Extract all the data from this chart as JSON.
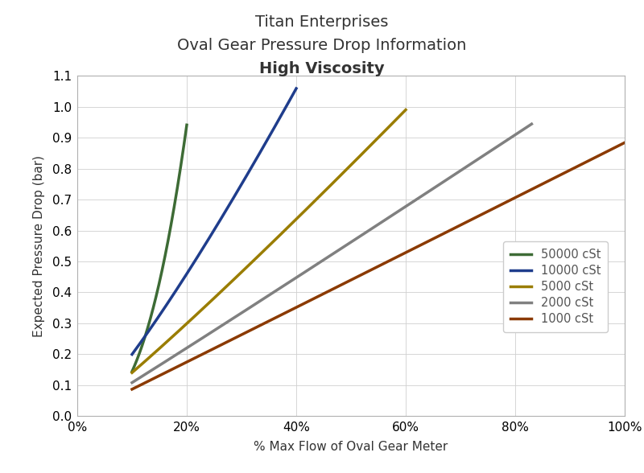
{
  "title_line1": "Titan Enterprises",
  "title_line2": "Oval Gear Pressure Drop Information",
  "title_line3": "High Viscosity",
  "xlabel": "% Max Flow of Oval Gear Meter",
  "ylabel": "Expected Pressure Drop (bar)",
  "xlim": [
    0,
    1.0
  ],
  "ylim": [
    0.0,
    1.1
  ],
  "xticks": [
    0,
    0.2,
    0.4,
    0.6,
    0.8,
    1.0
  ],
  "yticks": [
    0.0,
    0.1,
    0.2,
    0.3,
    0.4,
    0.5,
    0.6,
    0.7,
    0.8,
    0.9,
    1.0,
    1.1
  ],
  "series": [
    {
      "label": "50000 cSt",
      "color": "#3d6b35",
      "x": [
        0.1,
        0.13,
        0.16,
        0.2
      ],
      "y": [
        0.13,
        0.33,
        0.57,
        0.84
      ]
    },
    {
      "label": "10000 cSt",
      "color": "#1f3d8c",
      "x": [
        0.1,
        0.16,
        0.24,
        0.32,
        0.4
      ],
      "y": [
        0.19,
        0.37,
        0.6,
        0.81,
        1.01
      ]
    },
    {
      "label": "5000 cSt",
      "color": "#9a7d00",
      "x": [
        0.1,
        0.2,
        0.3,
        0.4,
        0.5,
        0.6
      ],
      "y": [
        0.155,
        0.27,
        0.43,
        0.62,
        0.84,
        1.07
      ]
    },
    {
      "label": "2000 cSt",
      "color": "#808080",
      "x": [
        0.1,
        0.2,
        0.35,
        0.5,
        0.65,
        0.83
      ],
      "y": [
        0.12,
        0.2,
        0.36,
        0.55,
        0.76,
        1.01
      ]
    },
    {
      "label": "1000 cSt",
      "color": "#8b3a00",
      "x": [
        0.1,
        0.25,
        0.4,
        0.55,
        0.7,
        0.85,
        1.0
      ],
      "y": [
        0.105,
        0.18,
        0.3,
        0.46,
        0.63,
        0.81,
        1.0
      ]
    }
  ],
  "bg_color": "#ffffff",
  "grid_color": "#d0d0d0",
  "line_width": 2.5,
  "title_fontsize": 14,
  "axis_label_fontsize": 11,
  "tick_fontsize": 11,
  "legend_fontsize": 10.5
}
